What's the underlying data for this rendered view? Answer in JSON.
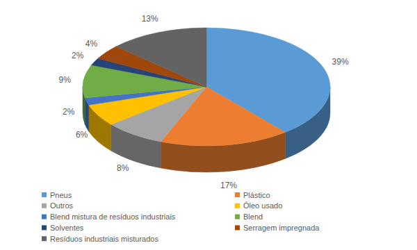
{
  "chart_data": {
    "type": "pie",
    "categories": [
      "Pneus",
      "Plástico",
      "Outros",
      "Óleo usado",
      "Blend mistura de resíduos industriais",
      "Blend",
      "Solventes",
      "Serragem impregnada",
      "Resíduos industriais misturados"
    ],
    "values": [
      39,
      17,
      8,
      6,
      2,
      9,
      2,
      4,
      13
    ],
    "value_labels": [
      "39%",
      "17%",
      "8%",
      "6%",
      "2%",
      "9%",
      "2%",
      "4%",
      "13%"
    ],
    "colors": [
      "#5b9bd5",
      "#ed7d31",
      "#a5a5a5",
      "#ffc000",
      "#4472c4",
      "#70ad47",
      "#264478",
      "#9e480e",
      "#636363"
    ],
    "data_labels": true,
    "legend": "bottom"
  }
}
